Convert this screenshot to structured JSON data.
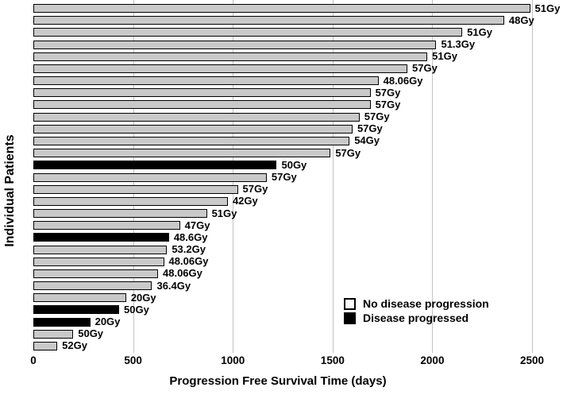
{
  "figure": {
    "xlabel": "Progression Free Survival Time (days)",
    "ylabel": "Individual Patients"
  },
  "chart_data": {
    "type": "bar",
    "orientation": "horizontal",
    "title": "",
    "xlabel": "Progression Free Survival Time (days)",
    "ylabel": "Individual Patients",
    "xlim": [
      0,
      2655
    ],
    "x_ticks": [
      0,
      500,
      1000,
      1500,
      2000,
      2500
    ],
    "grid": true,
    "legend_position": "lower-right",
    "colors": {
      "no_progression_fill": "#c9c9c9",
      "progressed_fill": "#000000",
      "bar_border": "#000000",
      "gridline": "#c3c3c3"
    },
    "legend": [
      {
        "label": "No disease progression",
        "swatch_color": "#ffffff"
      },
      {
        "label": "Disease progressed",
        "swatch_color": "#000000"
      }
    ],
    "patients": [
      {
        "dose_label": "51Gy",
        "days": 2490,
        "progressed": false
      },
      {
        "dose_label": "48Gy",
        "days": 2360,
        "progressed": false
      },
      {
        "dose_label": "51Gy",
        "days": 2150,
        "progressed": false
      },
      {
        "dose_label": "51.3Gy",
        "days": 2020,
        "progressed": false
      },
      {
        "dose_label": "51Gy",
        "days": 1975,
        "progressed": false
      },
      {
        "dose_label": "57Gy",
        "days": 1875,
        "progressed": false
      },
      {
        "dose_label": "48.06Gy",
        "days": 1730,
        "progressed": false
      },
      {
        "dose_label": "57Gy",
        "days": 1690,
        "progressed": false
      },
      {
        "dose_label": "57Gy",
        "days": 1690,
        "progressed": false
      },
      {
        "dose_label": "57Gy",
        "days": 1635,
        "progressed": false
      },
      {
        "dose_label": "57Gy",
        "days": 1600,
        "progressed": false
      },
      {
        "dose_label": "54Gy",
        "days": 1585,
        "progressed": false
      },
      {
        "dose_label": "57Gy",
        "days": 1490,
        "progressed": false
      },
      {
        "dose_label": "50Gy",
        "days": 1220,
        "progressed": true
      },
      {
        "dose_label": "57Gy",
        "days": 1170,
        "progressed": false
      },
      {
        "dose_label": "57Gy",
        "days": 1025,
        "progressed": false
      },
      {
        "dose_label": "42Gy",
        "days": 975,
        "progressed": false
      },
      {
        "dose_label": "51Gy",
        "days": 870,
        "progressed": false
      },
      {
        "dose_label": "47Gy",
        "days": 735,
        "progressed": false
      },
      {
        "dose_label": "48.6Gy",
        "days": 680,
        "progressed": true
      },
      {
        "dose_label": "53.2Gy",
        "days": 670,
        "progressed": false
      },
      {
        "dose_label": "48.06Gy",
        "days": 655,
        "progressed": false
      },
      {
        "dose_label": "48.06Gy",
        "days": 625,
        "progressed": false
      },
      {
        "dose_label": "36.4Gy",
        "days": 595,
        "progressed": false
      },
      {
        "dose_label": "20Gy",
        "days": 465,
        "progressed": false
      },
      {
        "dose_label": "50Gy",
        "days": 430,
        "progressed": true
      },
      {
        "dose_label": "20Gy",
        "days": 285,
        "progressed": true
      },
      {
        "dose_label": "50Gy",
        "days": 200,
        "progressed": false
      },
      {
        "dose_label": "52Gy",
        "days": 120,
        "progressed": false
      }
    ]
  }
}
